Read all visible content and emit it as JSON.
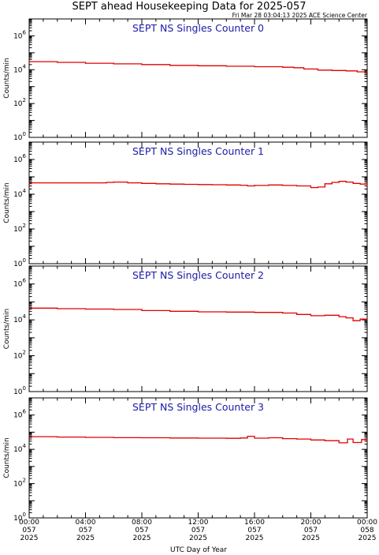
{
  "title": "SEPT ahead Housekeeping Data for 2025-057",
  "subtitle": "Fri Mar 28 03:04:13 2025 ACE Science Center",
  "xlabel": "UTC Day of Year",
  "ylabel": "Counts/min",
  "x_ticks": [
    {
      "hhmm": "00:00",
      "doy": "057",
      "year": "2025"
    },
    {
      "hhmm": "04:00",
      "doy": "057",
      "year": "2025"
    },
    {
      "hhmm": "08:00",
      "doy": "057",
      "year": "2025"
    },
    {
      "hhmm": "12:00",
      "doy": "057",
      "year": "2025"
    },
    {
      "hhmm": "16:00",
      "doy": "057",
      "year": "2025"
    },
    {
      "hhmm": "20:00",
      "doy": "057",
      "year": "2025"
    },
    {
      "hhmm": "00:00",
      "doy": "058",
      "year": "2025"
    }
  ],
  "colors": {
    "line": "#e00000",
    "panel_title": "#1a1aa8",
    "axes": "#000000"
  },
  "chart_data": [
    {
      "type": "line",
      "title": "SEPT NS Singles Counter 0",
      "ylabel": "Counts/min",
      "xlabel": "UTC Day of Year",
      "yscale": "log",
      "ylim": [
        1,
        10000000
      ],
      "xlim_hours": [
        0,
        24
      ],
      "y_ticks": [
        "10^0",
        "10^2",
        "10^4",
        "10^6"
      ],
      "series": [
        {
          "x": [
            0,
            2,
            4,
            6,
            8,
            10,
            12,
            14,
            16,
            18,
            18.8,
            19.5,
            20.5,
            21.5,
            22.5,
            23.3,
            24
          ],
          "values": [
            30000,
            27000,
            24000,
            22000,
            20000,
            18000,
            17000,
            16000,
            15000,
            14000,
            13000,
            11000,
            9500,
            9000,
            8500,
            7500,
            8000
          ]
        }
      ]
    },
    {
      "type": "line",
      "title": "SEPT NS Singles Counter 1",
      "ylabel": "Counts/min",
      "xlabel": "UTC Day of Year",
      "yscale": "log",
      "ylim": [
        1,
        10000000
      ],
      "xlim_hours": [
        0,
        24
      ],
      "y_ticks": [
        "10^0",
        "10^2",
        "10^4",
        "10^6"
      ],
      "series": [
        {
          "x": [
            0,
            2,
            4,
            5.5,
            6,
            7,
            8,
            9,
            10,
            11,
            12,
            13,
            14,
            15,
            15.5,
            16,
            17,
            18,
            19,
            20,
            20.5,
            21,
            21.5,
            22,
            22.5,
            23,
            23.5,
            24
          ],
          "values": [
            45000,
            45000,
            45000,
            48000,
            50000,
            45000,
            42000,
            40000,
            38000,
            37000,
            36000,
            35000,
            34000,
            33000,
            30000,
            32000,
            34000,
            32000,
            30000,
            24000,
            26000,
            40000,
            48000,
            55000,
            50000,
            42000,
            38000,
            32000
          ]
        }
      ]
    },
    {
      "type": "line",
      "title": "SEPT NS Singles Counter 2",
      "ylabel": "Counts/min",
      "xlabel": "UTC Day of Year",
      "yscale": "log",
      "ylim": [
        1,
        10000000
      ],
      "xlim_hours": [
        0,
        24
      ],
      "y_ticks": [
        "10^0",
        "10^2",
        "10^4",
        "10^6"
      ],
      "series": [
        {
          "x": [
            0,
            2,
            4,
            6,
            8,
            10,
            12,
            14,
            16,
            18,
            19,
            20,
            21,
            22,
            22.5,
            23,
            23.5,
            24
          ],
          "values": [
            45000,
            42000,
            40000,
            38000,
            33000,
            30000,
            28000,
            27000,
            26000,
            24000,
            20000,
            17000,
            18000,
            15000,
            13000,
            9000,
            11000,
            10000
          ]
        }
      ]
    },
    {
      "type": "line",
      "title": "SEPT NS Singles Counter 3",
      "ylabel": "Counts/min",
      "xlabel": "UTC Day of Year",
      "yscale": "log",
      "ylim": [
        1,
        10000000
      ],
      "xlim_hours": [
        0,
        24
      ],
      "y_ticks": [
        "10^0",
        "10^2",
        "10^4",
        "10^6"
      ],
      "series": [
        {
          "x": [
            0,
            2,
            4,
            6,
            8,
            10,
            12,
            14,
            15,
            15.5,
            16,
            17,
            18,
            19,
            20,
            21,
            22,
            22.6,
            23,
            23.6,
            24
          ],
          "values": [
            55000,
            52000,
            50000,
            48000,
            47000,
            46000,
            45000,
            44000,
            46000,
            58000,
            45000,
            47000,
            42000,
            40000,
            35000,
            32000,
            24000,
            40000,
            25000,
            37000,
            34000
          ]
        }
      ]
    }
  ]
}
